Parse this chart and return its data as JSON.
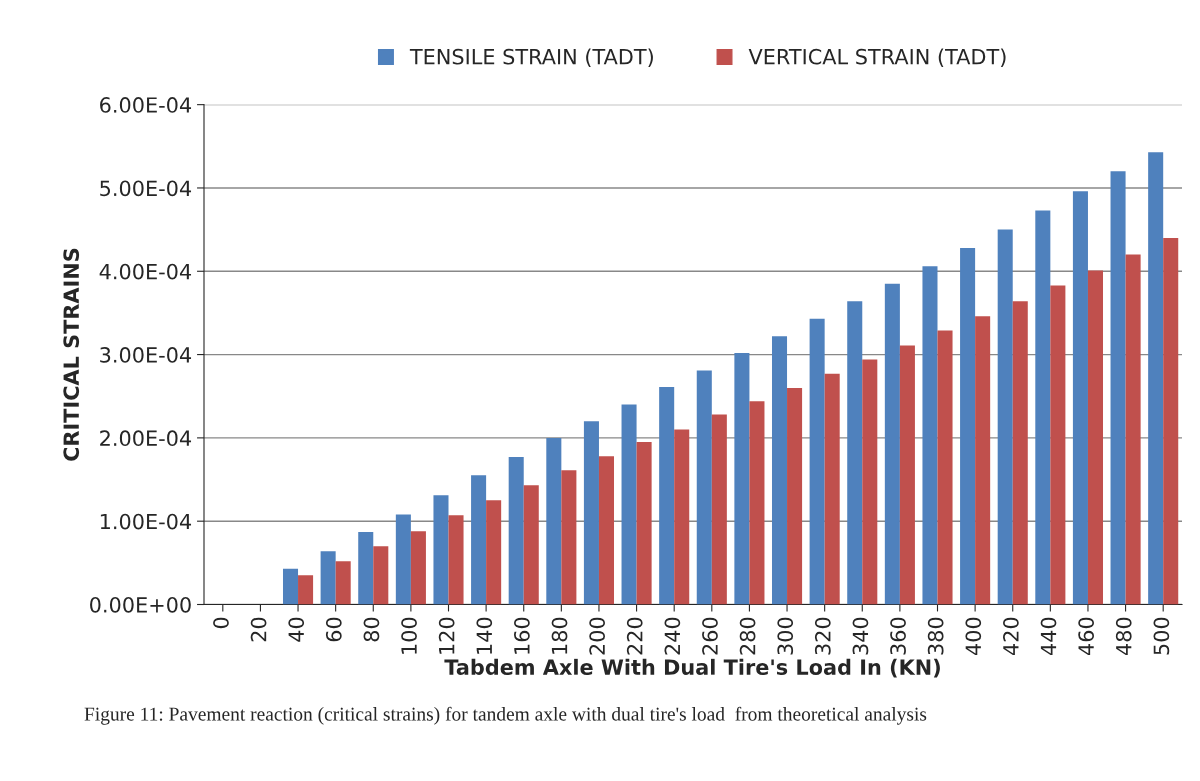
{
  "chart_data": {
    "type": "bar",
    "xlabel": "Tabdem Axle With Dual Tire's Load In (KN)",
    "ylabel": "CRITICAL STRAINS",
    "categories": [
      "0",
      "20",
      "40",
      "60",
      "80",
      "100",
      "120",
      "140",
      "160",
      "180",
      "200",
      "220",
      "240",
      "260",
      "280",
      "300",
      "320",
      "340",
      "360",
      "380",
      "400",
      "420",
      "440",
      "460",
      "480",
      "500"
    ],
    "series": [
      {
        "name": "TENSILE STRAIN (TADT)",
        "color": "#4f81bd",
        "values": [
          null,
          null,
          4.3e-05,
          6.4e-05,
          8.7e-05,
          0.000108,
          0.000131,
          0.000155,
          0.000177,
          0.0002,
          0.00022,
          0.00024,
          0.000261,
          0.000281,
          0.000302,
          0.000322,
          0.000343,
          0.000364,
          0.000385,
          0.000406,
          0.000428,
          0.00045,
          0.000473,
          0.000496,
          0.00052,
          0.000543
        ]
      },
      {
        "name": "VERTICAL STRAIN (TADT)",
        "color": "#c0504d",
        "values": [
          null,
          null,
          3.5e-05,
          5.2e-05,
          7e-05,
          8.8e-05,
          0.000107,
          0.000125,
          0.000143,
          0.000161,
          0.000178,
          0.000195,
          0.00021,
          0.000228,
          0.000244,
          0.00026,
          0.000277,
          0.000294,
          0.000311,
          0.000329,
          0.000346,
          0.000364,
          0.000383,
          0.000401,
          0.00042,
          0.00044
        ]
      }
    ],
    "ylim": [
      0,
      0.0006
    ],
    "yticks": [
      {
        "value": 0,
        "label": "0.00E+00"
      },
      {
        "value": 0.0001,
        "label": "1.00E-04"
      },
      {
        "value": 0.0002,
        "label": "2.00E-04"
      },
      {
        "value": 0.0003,
        "label": "3.00E-04"
      },
      {
        "value": 0.0004,
        "label": "4.00E-04"
      },
      {
        "value": 0.0005,
        "label": "5.00E-04"
      },
      {
        "value": 0.0006,
        "label": "6.00E-04"
      }
    ],
    "grid": "y",
    "legend": "top",
    "annotations": [
      "Figure 11: Pavement reaction (critical strains) for tandem axle with dual tire's load  from theoretical analysis"
    ]
  }
}
